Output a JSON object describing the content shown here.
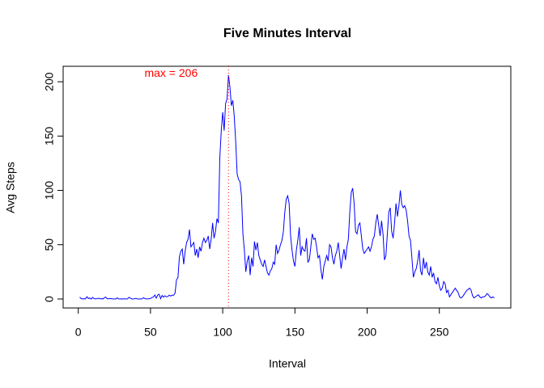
{
  "chart_data": {
    "type": "line",
    "title": "Five Minutes Interval",
    "xlabel": "Interval",
    "ylabel": "Avg Steps",
    "x": [
      1,
      2,
      3,
      4,
      5,
      6,
      7,
      8,
      9,
      10,
      11,
      12,
      13,
      14,
      15,
      16,
      17,
      18,
      19,
      20,
      21,
      22,
      23,
      24,
      25,
      26,
      27,
      28,
      29,
      30,
      31,
      32,
      33,
      34,
      35,
      36,
      37,
      38,
      39,
      40,
      41,
      42,
      43,
      44,
      45,
      46,
      47,
      48,
      49,
      50,
      51,
      52,
      53,
      54,
      55,
      56,
      57,
      58,
      59,
      60,
      61,
      62,
      63,
      64,
      65,
      66,
      67,
      68,
      69,
      70,
      71,
      72,
      73,
      74,
      75,
      76,
      77,
      78,
      79,
      80,
      81,
      82,
      83,
      84,
      85,
      86,
      87,
      88,
      89,
      90,
      91,
      92,
      93,
      94,
      95,
      96,
      97,
      98,
      99,
      100,
      101,
      102,
      103,
      104,
      105,
      106,
      107,
      108,
      109,
      110,
      111,
      112,
      113,
      114,
      115,
      116,
      117,
      118,
      119,
      120,
      121,
      122,
      123,
      124,
      125,
      126,
      127,
      128,
      129,
      130,
      131,
      132,
      133,
      134,
      135,
      136,
      137,
      138,
      139,
      140,
      141,
      142,
      143,
      144,
      145,
      146,
      147,
      148,
      149,
      150,
      151,
      152,
      153,
      154,
      155,
      156,
      157,
      158,
      159,
      160,
      161,
      162,
      163,
      164,
      165,
      166,
      167,
      168,
      169,
      170,
      171,
      172,
      173,
      174,
      175,
      176,
      177,
      178,
      179,
      180,
      181,
      182,
      183,
      184,
      185,
      186,
      187,
      188,
      189,
      190,
      191,
      192,
      193,
      194,
      195,
      196,
      197,
      198,
      199,
      200,
      201,
      202,
      203,
      204,
      205,
      206,
      207,
      208,
      209,
      210,
      211,
      212,
      213,
      214,
      215,
      216,
      217,
      218,
      219,
      220,
      221,
      222,
      223,
      224,
      225,
      226,
      227,
      228,
      229,
      230,
      231,
      232,
      233,
      234,
      235,
      236,
      237,
      238,
      239,
      240,
      241,
      242,
      243,
      244,
      245,
      246,
      247,
      248,
      249,
      250,
      251,
      252,
      253,
      254,
      255,
      256,
      257,
      258,
      259,
      260,
      261,
      262,
      263,
      264,
      265,
      266,
      267,
      268,
      269,
      270,
      271,
      272,
      273,
      274,
      275,
      276,
      277,
      278,
      279,
      280,
      281,
      282,
      283,
      284,
      285,
      286,
      287,
      288
    ],
    "series": [
      {
        "name": "Avg Steps",
        "color": "#0000ff",
        "values": [
          1.7,
          0.3,
          0.1,
          0.2,
          0.1,
          2.1,
          0.5,
          0.9,
          0,
          1.5,
          0.3,
          0.1,
          0.3,
          0.7,
          0.2,
          0.3,
          0,
          1.1,
          1.8,
          0.2,
          0.2,
          0.4,
          0.3,
          0,
          0,
          0,
          1.1,
          0,
          0,
          0.1,
          0,
          0.2,
          0,
          0,
          1.5,
          0.9,
          0,
          0,
          0.2,
          0.6,
          0,
          0,
          0,
          0,
          1.2,
          0.5,
          0,
          0.1,
          0.3,
          0.5,
          1.4,
          1.8,
          3.7,
          0.8,
          3.7,
          4.4,
          0.3,
          3.3,
          1.8,
          3.0,
          2.0,
          2.3,
          3.6,
          2.7,
          3.6,
          3.4,
          5.4,
          17.8,
          19.6,
          38.7,
          44,
          46,
          32,
          44,
          52,
          55,
          64,
          48,
          50,
          52,
          40,
          46,
          38,
          48,
          44,
          52,
          56,
          52,
          54,
          58,
          46,
          55,
          70,
          56,
          62,
          74,
          70,
          130,
          155,
          172,
          155,
          180,
          184,
          206,
          195,
          178,
          183,
          168,
          145,
          115,
          110,
          108,
          95,
          60,
          45,
          25,
          35,
          40,
          22,
          38,
          30,
          53,
          45,
          52,
          40,
          36,
          32,
          30,
          36,
          30,
          24,
          22,
          26,
          28,
          34,
          32,
          50,
          42,
          45,
          50,
          54,
          62,
          80,
          92,
          95,
          88,
          58,
          45,
          35,
          30,
          45,
          54,
          66,
          40,
          48,
          45,
          44,
          56,
          34,
          36,
          48,
          60,
          55,
          56,
          48,
          38,
          40,
          27,
          18,
          30,
          35,
          40,
          35,
          50,
          48,
          38,
          32,
          40,
          44,
          52,
          40,
          28,
          38,
          46,
          36,
          48,
          55,
          80,
          98,
          102,
          88,
          62,
          60,
          68,
          70,
          58,
          46,
          42,
          44,
          46,
          48,
          44,
          48,
          55,
          58,
          70,
          78,
          68,
          58,
          72,
          60,
          36,
          40,
          60,
          80,
          84,
          62,
          56,
          70,
          88,
          76,
          86,
          100,
          87,
          84,
          86,
          82,
          72,
          58,
          54,
          38,
          20,
          25,
          28,
          35,
          45,
          26,
          22,
          38,
          28,
          34,
          25,
          22,
          30,
          20,
          24,
          16,
          14,
          20,
          12,
          8,
          10,
          16,
          14,
          6,
          8,
          2,
          4,
          6,
          8,
          10,
          8,
          6,
          2,
          1,
          2,
          4,
          6,
          8,
          9,
          10,
          8,
          3,
          1,
          2,
          3,
          4,
          2,
          1,
          2,
          2,
          3,
          5,
          4,
          2,
          1,
          2,
          1
        ]
      }
    ],
    "xlim": [
      -10.48,
      299.48
    ],
    "ylim": [
      -8.24,
      214.24
    ],
    "xticks": [
      0,
      50,
      100,
      150,
      200,
      250
    ],
    "yticks": [
      0,
      50,
      100,
      150,
      200
    ],
    "vline": {
      "x": 104,
      "color": "#ff0000"
    },
    "annotation": {
      "text": "max =  206",
      "x": 104,
      "y": 206,
      "color": "#ff0000"
    }
  }
}
